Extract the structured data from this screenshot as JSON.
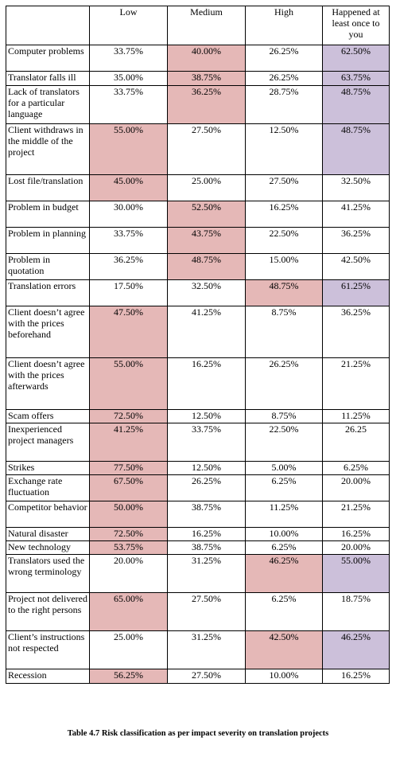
{
  "colors": {
    "highlight_red": "#e5b8b7",
    "highlight_purple": "#ccc0da"
  },
  "headers": [
    "",
    "Low",
    "Medium",
    "High",
    "Happened at least once to you"
  ],
  "rows": [
    {
      "factor": "Computer problems",
      "values": [
        "33.75%",
        "40.00%",
        "26.25%",
        "62.50%"
      ],
      "highlight": [
        null,
        "red",
        null,
        "purple"
      ]
    },
    {
      "factor": "Translator falls ill",
      "values": [
        "35.00%",
        "38.75%",
        "26.25%",
        "63.75%"
      ],
      "highlight": [
        null,
        "red",
        null,
        "purple"
      ]
    },
    {
      "factor": "Lack of translators for a particular language",
      "values": [
        "33.75%",
        "36.25%",
        "28.75%",
        "48.75%"
      ],
      "highlight": [
        null,
        "red",
        null,
        "purple"
      ]
    },
    {
      "factor": "Client withdraws in the middle of the project",
      "values": [
        "55.00%",
        "27.50%",
        "12.50%",
        "48.75%"
      ],
      "highlight": [
        "red",
        null,
        null,
        "purple"
      ]
    },
    {
      "factor": "Lost file/translation",
      "values": [
        "45.00%",
        "25.00%",
        "27.50%",
        "32.50%"
      ],
      "highlight": [
        "red",
        null,
        null,
        null
      ]
    },
    {
      "factor": "Problem in budget",
      "values": [
        "30.00%",
        "52.50%",
        "16.25%",
        "41.25%"
      ],
      "highlight": [
        null,
        "red",
        null,
        null
      ]
    },
    {
      "factor": "Problem in planning",
      "values": [
        "33.75%",
        "43.75%",
        "22.50%",
        "36.25%"
      ],
      "highlight": [
        null,
        "red",
        null,
        null
      ]
    },
    {
      "factor": "Problem in quotation",
      "values": [
        "36.25%",
        "48.75%",
        "15.00%",
        "42.50%"
      ],
      "highlight": [
        null,
        "red",
        null,
        null
      ]
    },
    {
      "factor": "Translation errors",
      "values": [
        "17.50%",
        "32.50%",
        "48.75%",
        "61.25%"
      ],
      "highlight": [
        null,
        null,
        "red",
        "purple"
      ]
    },
    {
      "factor": "Client doesn’t agree with the prices beforehand",
      "values": [
        "47.50%",
        "41.25%",
        "8.75%",
        "36.25%"
      ],
      "highlight": [
        "red",
        null,
        null,
        null
      ]
    },
    {
      "factor": "Client doesn’t agree with the prices afterwards",
      "values": [
        "55.00%",
        "16.25%",
        "26.25%",
        "21.25%"
      ],
      "highlight": [
        "red",
        null,
        null,
        null
      ]
    },
    {
      "factor": "Scam offers",
      "values": [
        "72.50%",
        "12.50%",
        "8.75%",
        "11.25%"
      ],
      "highlight": [
        "red",
        null,
        null,
        null
      ]
    },
    {
      "factor": "Inexperienced project managers",
      "values": [
        "41.25%",
        "33.75%",
        "22.50%",
        "26.25"
      ],
      "highlight": [
        "red",
        null,
        null,
        null
      ]
    },
    {
      "factor": "Strikes",
      "values": [
        "77.50%",
        "12.50%",
        "5.00%",
        "6.25%"
      ],
      "highlight": [
        "red",
        null,
        null,
        null
      ]
    },
    {
      "factor": "Exchange rate fluctuation",
      "values": [
        "67.50%",
        "26.25%",
        "6.25%",
        "20.00%"
      ],
      "highlight": [
        "red",
        null,
        null,
        null
      ]
    },
    {
      "factor": "Competitor behavior",
      "values": [
        "50.00%",
        "38.75%",
        "11.25%",
        "21.25%"
      ],
      "highlight": [
        "red",
        null,
        null,
        null
      ]
    },
    {
      "factor": "Natural disaster",
      "values": [
        "72.50%",
        "16.25%",
        "10.00%",
        "16.25%"
      ],
      "highlight": [
        "red",
        null,
        null,
        null
      ]
    },
    {
      "factor": "New technology",
      "values": [
        "53.75%",
        "38.75%",
        "6.25%",
        "20.00%"
      ],
      "highlight": [
        "red",
        null,
        null,
        null
      ]
    },
    {
      "factor": "Translators used the wrong terminology",
      "values": [
        "20.00%",
        "31.25%",
        "46.25%",
        "55.00%"
      ],
      "highlight": [
        null,
        null,
        "red",
        "purple"
      ]
    },
    {
      "factor": "Project not delivered to the right persons",
      "values": [
        "65.00%",
        "27.50%",
        "6.25%",
        "18.75%"
      ],
      "highlight": [
        "red",
        null,
        null,
        null
      ]
    },
    {
      "factor": "Client’s instructions not respected",
      "values": [
        "25.00%",
        "31.25%",
        "42.50%",
        "46.25%"
      ],
      "highlight": [
        null,
        null,
        "red",
        "purple"
      ]
    },
    {
      "factor": "Recession",
      "values": [
        "56.25%",
        "27.50%",
        "10.00%",
        "16.25%"
      ],
      "highlight": [
        "red",
        null,
        null,
        null
      ]
    }
  ],
  "caption": "Table 4.7 Risk classification as per impact severity on translation projects"
}
